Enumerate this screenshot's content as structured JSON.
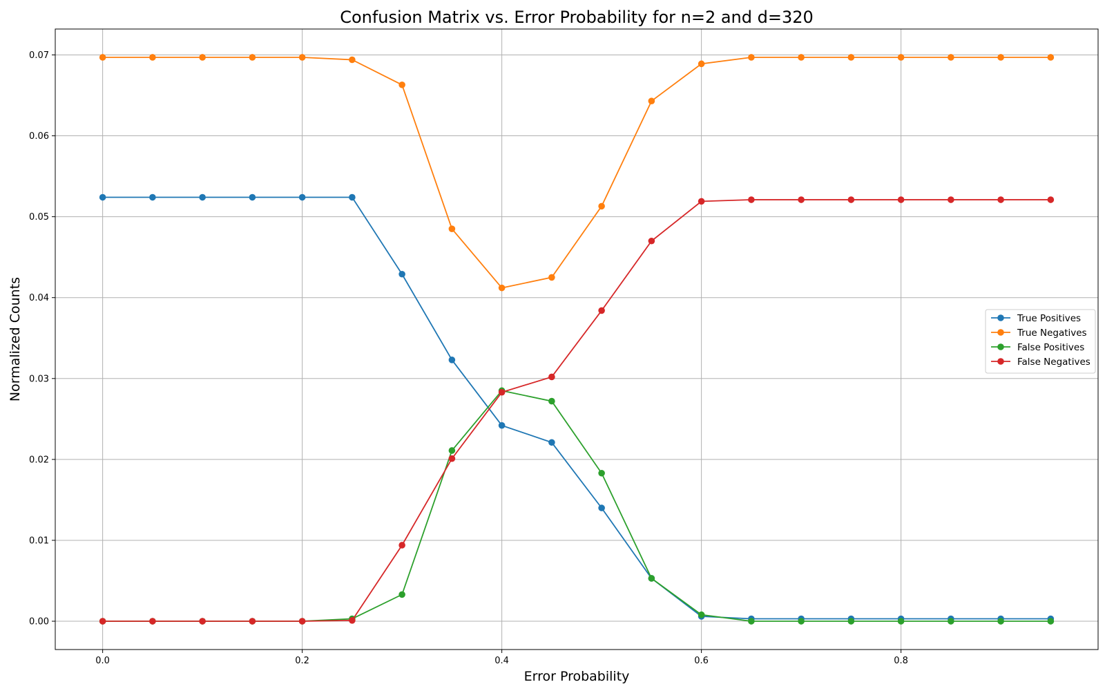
{
  "chart_data": {
    "type": "line",
    "title": "Confusion Matrix vs. Error Probability for n=2 and d=320",
    "xlabel": "Error Probability",
    "ylabel": "Normalized Counts",
    "xlim": [
      -0.0475,
      0.9975
    ],
    "ylim": [
      -0.0035,
      0.0732
    ],
    "xticks": [
      0.0,
      0.2,
      0.4,
      0.6,
      0.8
    ],
    "xtick_labels": [
      "0.0",
      "0.2",
      "0.4",
      "0.6",
      "0.8"
    ],
    "yticks": [
      0.0,
      0.01,
      0.02,
      0.03,
      0.04,
      0.05,
      0.06,
      0.07
    ],
    "ytick_labels": [
      "0.00",
      "0.01",
      "0.02",
      "0.03",
      "0.04",
      "0.05",
      "0.06",
      "0.07"
    ],
    "grid": true,
    "legend_position": "center-right",
    "x": [
      0.0,
      0.05,
      0.1,
      0.15,
      0.2,
      0.25,
      0.3,
      0.35,
      0.4,
      0.45,
      0.5,
      0.55,
      0.6,
      0.65,
      0.7,
      0.75,
      0.8,
      0.85,
      0.9,
      0.95
    ],
    "series": [
      {
        "name": "True Positives",
        "color": "#1f77b4",
        "values": [
          0.0524,
          0.0524,
          0.0524,
          0.0524,
          0.0524,
          0.0524,
          0.0429,
          0.0323,
          0.0242,
          0.0221,
          0.014,
          0.0053,
          0.0006,
          0.0003,
          0.0003,
          0.0003,
          0.0003,
          0.0003,
          0.0003,
          0.0003
        ]
      },
      {
        "name": "True Negatives",
        "color": "#ff7f0e",
        "values": [
          0.0697,
          0.0697,
          0.0697,
          0.0697,
          0.0697,
          0.0694,
          0.0663,
          0.0485,
          0.0412,
          0.0425,
          0.0513,
          0.0643,
          0.0689,
          0.0697,
          0.0697,
          0.0697,
          0.0697,
          0.0697,
          0.0697,
          0.0697
        ]
      },
      {
        "name": "False Positives",
        "color": "#2ca02c",
        "values": [
          0.0,
          0.0,
          0.0,
          0.0,
          0.0,
          0.0003,
          0.0033,
          0.0211,
          0.0285,
          0.0272,
          0.0183,
          0.0053,
          0.0008,
          0.0,
          0.0,
          0.0,
          0.0,
          0.0,
          0.0,
          0.0
        ]
      },
      {
        "name": "False Negatives",
        "color": "#d62728",
        "values": [
          0.0,
          0.0,
          0.0,
          0.0,
          0.0,
          0.0001,
          0.0094,
          0.0201,
          0.0283,
          0.0302,
          0.0384,
          0.047,
          0.0519,
          0.0521,
          0.0521,
          0.0521,
          0.0521,
          0.0521,
          0.0521,
          0.0521
        ]
      }
    ]
  }
}
